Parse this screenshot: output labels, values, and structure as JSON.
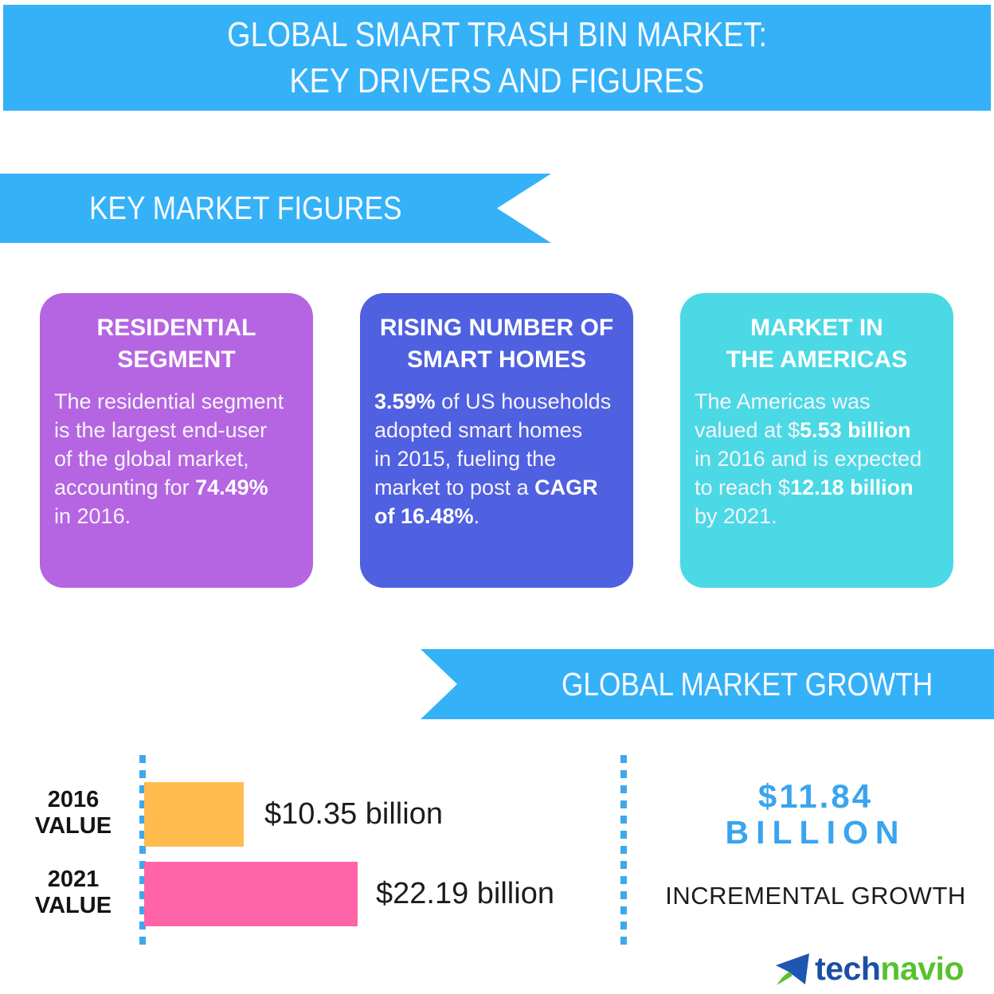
{
  "banner": {
    "line1": "GLOBAL SMART TRASH BIN MARKET:",
    "line2": "KEY DRIVERS AND FIGURES"
  },
  "sections": {
    "key_market_figures": "KEY MARKET FIGURES",
    "global_market_growth": "GLOBAL MARKET GROWTH"
  },
  "cards": [
    {
      "id": "residential-segment",
      "color": "#b565e1",
      "title_lines": [
        "RESIDENTIAL",
        "SEGMENT"
      ],
      "body": [
        {
          "t": "The residential segment\nis the largest end-user\nof the global market,\naccounting for ",
          "b": false
        },
        {
          "t": "74.49%",
          "b": true
        },
        {
          "t": "\nin 2016.",
          "b": false
        }
      ]
    },
    {
      "id": "rising-number-of-smart-homes",
      "color": "#4f60e1",
      "title_lines": [
        "RISING NUMBER OF",
        "SMART HOMES"
      ],
      "body": [
        {
          "t": "3.59%",
          "b": true
        },
        {
          "t": " of US households\nadopted smart homes\nin 2015, fueling the\nmarket to post a ",
          "b": false
        },
        {
          "t": "CAGR\nof 16.48%",
          "b": true
        },
        {
          "t": ".",
          "b": false
        }
      ]
    },
    {
      "id": "market-in-the-americas",
      "color": "#4ad9e5",
      "title_lines": [
        "MARKET IN",
        "THE AMERICAS"
      ],
      "body": [
        {
          "t": "The Americas was\nvalued at $",
          "b": false
        },
        {
          "t": "5.53 billion",
          "b": true
        },
        {
          "t": "\nin 2016 and is expected\nto reach $",
          "b": false
        },
        {
          "t": "12.18 billion",
          "b": true
        },
        {
          "t": "\nby 2021.",
          "b": false
        }
      ]
    }
  ],
  "chart_data": {
    "type": "bar",
    "orientation": "horizontal",
    "title": "GLOBAL MARKET GROWTH",
    "categories": [
      "2016 VALUE",
      "2021 VALUE"
    ],
    "category_lines": [
      [
        "2016",
        "VALUE"
      ],
      [
        "2021",
        "VALUE"
      ]
    ],
    "values": [
      10.35,
      22.19
    ],
    "unit": "USD billion",
    "value_labels": [
      "$10.35 billion",
      "$22.19 billion"
    ],
    "bar_colors": [
      "#ffbb4e",
      "#ff64a8"
    ],
    "axis_color": "#3fa8ec",
    "xlim": [
      0,
      22.19
    ],
    "grid": false,
    "incremental_growth": {
      "amount": "$11.84",
      "unit": "BILLION",
      "label": "INCREMENTAL GROWTH",
      "color": "#3aa4ef"
    }
  },
  "logo": {
    "brand_prefix": "tech",
    "brand_suffix": "navio",
    "prefix_color": "#1b4fa5",
    "suffix_color": "#57c22d",
    "icon_blue": "#1e56b0",
    "icon_green": "#57c22d"
  },
  "colors": {
    "banner_blue": "#35b1f8"
  }
}
